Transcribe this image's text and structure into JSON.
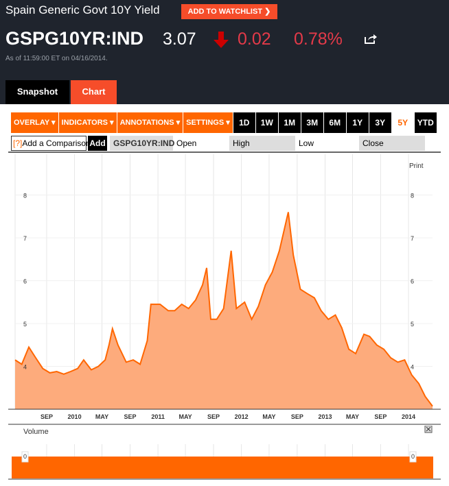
{
  "header": {
    "title": "Spain Generic Govt 10Y Yield",
    "watchlist_label": "ADD TO WATCHLIST ❯",
    "ticker": "GSPG10YR:IND",
    "price": "3.07",
    "change": "0.02",
    "change_pct": "0.78%",
    "direction": "down",
    "as_of": "As of 11:59:00 ET on 04/16/2014.",
    "down_color": "#e43a49"
  },
  "tabs": [
    {
      "label": "Snapshot"
    },
    {
      "label": "Chart",
      "active": true
    }
  ],
  "toolbar": {
    "menus": [
      "OVERLAY ▾",
      "INDICATORS ▾",
      "ANNOTATIONS ▾",
      "SETTINGS ▾"
    ],
    "periods": [
      "1D",
      "1W",
      "1M",
      "3M",
      "6M",
      "1Y",
      "3Y",
      "5Y",
      "YTD"
    ],
    "active_period": "5Y"
  },
  "comparison": {
    "help": "[?]",
    "placeholder": "Add a Comparison",
    "add_label": "Add",
    "symbol": "GSPG10YR:IND",
    "open_label": "Open",
    "high_label": "High",
    "low_label": "Low",
    "close_label": "Close"
  },
  "print_label": "Print",
  "volume_label": "Volume",
  "accent": "#ff6600",
  "chart_data": {
    "type": "area",
    "ylim": [
      3,
      8.9
    ],
    "yticks": [
      4,
      5,
      6,
      7,
      8
    ],
    "xticks": [
      {
        "label": "SEP",
        "date": "2009-09-01"
      },
      {
        "label": "2010",
        "date": "2010-01-01"
      },
      {
        "label": "MAY",
        "date": "2010-05-01"
      },
      {
        "label": "SEP",
        "date": "2010-09-01"
      },
      {
        "label": "2011",
        "date": "2011-01-01"
      },
      {
        "label": "MAY",
        "date": "2011-05-01"
      },
      {
        "label": "SEP",
        "date": "2011-09-01"
      },
      {
        "label": "2012",
        "date": "2012-01-01"
      },
      {
        "label": "MAY",
        "date": "2012-05-01"
      },
      {
        "label": "SEP",
        "date": "2012-09-01"
      },
      {
        "label": "2013",
        "date": "2013-01-01"
      },
      {
        "label": "MAY",
        "date": "2013-05-01"
      },
      {
        "label": "SEP",
        "date": "2013-09-01"
      },
      {
        "label": "2014",
        "date": "2014-01-01"
      }
    ],
    "xlim": [
      "2009-04-16",
      "2014-04-16"
    ],
    "grid": true,
    "points": [
      [
        "2009-04-16",
        4.15
      ],
      [
        "2009-05-15",
        4.05
      ],
      [
        "2009-06-15",
        4.45
      ],
      [
        "2009-07-15",
        4.2
      ],
      [
        "2009-08-15",
        3.95
      ],
      [
        "2009-09-15",
        3.85
      ],
      [
        "2009-10-15",
        3.88
      ],
      [
        "2009-11-15",
        3.82
      ],
      [
        "2009-12-15",
        3.88
      ],
      [
        "2010-01-15",
        3.95
      ],
      [
        "2010-02-10",
        4.15
      ],
      [
        "2010-03-15",
        3.92
      ],
      [
        "2010-04-15",
        4.0
      ],
      [
        "2010-05-15",
        4.15
      ],
      [
        "2010-06-01",
        4.5
      ],
      [
        "2010-06-16",
        4.88
      ],
      [
        "2010-07-10",
        4.5
      ],
      [
        "2010-08-15",
        4.1
      ],
      [
        "2010-09-15",
        4.15
      ],
      [
        "2010-10-15",
        4.05
      ],
      [
        "2010-11-15",
        4.6
      ],
      [
        "2010-12-01",
        5.45
      ],
      [
        "2011-01-10",
        5.45
      ],
      [
        "2011-02-15",
        5.3
      ],
      [
        "2011-03-15",
        5.3
      ],
      [
        "2011-04-15",
        5.45
      ],
      [
        "2011-05-15",
        5.35
      ],
      [
        "2011-06-15",
        5.55
      ],
      [
        "2011-07-15",
        5.9
      ],
      [
        "2011-08-02",
        6.3
      ],
      [
        "2011-08-20",
        5.1
      ],
      [
        "2011-09-15",
        5.1
      ],
      [
        "2011-10-15",
        5.35
      ],
      [
        "2011-11-17",
        6.7
      ],
      [
        "2011-12-10",
        5.35
      ],
      [
        "2012-01-15",
        5.5
      ],
      [
        "2012-02-15",
        5.1
      ],
      [
        "2012-03-15",
        5.4
      ],
      [
        "2012-04-15",
        5.9
      ],
      [
        "2012-05-15",
        6.2
      ],
      [
        "2012-06-15",
        6.7
      ],
      [
        "2012-07-24",
        7.6
      ],
      [
        "2012-08-15",
        6.6
      ],
      [
        "2012-09-15",
        5.8
      ],
      [
        "2012-10-15",
        5.7
      ],
      [
        "2012-11-15",
        5.6
      ],
      [
        "2012-12-15",
        5.3
      ],
      [
        "2013-01-15",
        5.1
      ],
      [
        "2013-02-15",
        5.2
      ],
      [
        "2013-03-15",
        4.9
      ],
      [
        "2013-04-15",
        4.4
      ],
      [
        "2013-05-15",
        4.3
      ],
      [
        "2013-06-20",
        4.75
      ],
      [
        "2013-07-15",
        4.7
      ],
      [
        "2013-08-15",
        4.5
      ],
      [
        "2013-09-15",
        4.4
      ],
      [
        "2013-10-15",
        4.2
      ],
      [
        "2013-11-15",
        4.1
      ],
      [
        "2013-12-15",
        4.15
      ],
      [
        "2014-01-15",
        3.8
      ],
      [
        "2014-02-15",
        3.6
      ],
      [
        "2014-03-15",
        3.3
      ],
      [
        "2014-04-16",
        3.07
      ]
    ],
    "volume": {
      "yticks": [
        0
      ]
    }
  }
}
